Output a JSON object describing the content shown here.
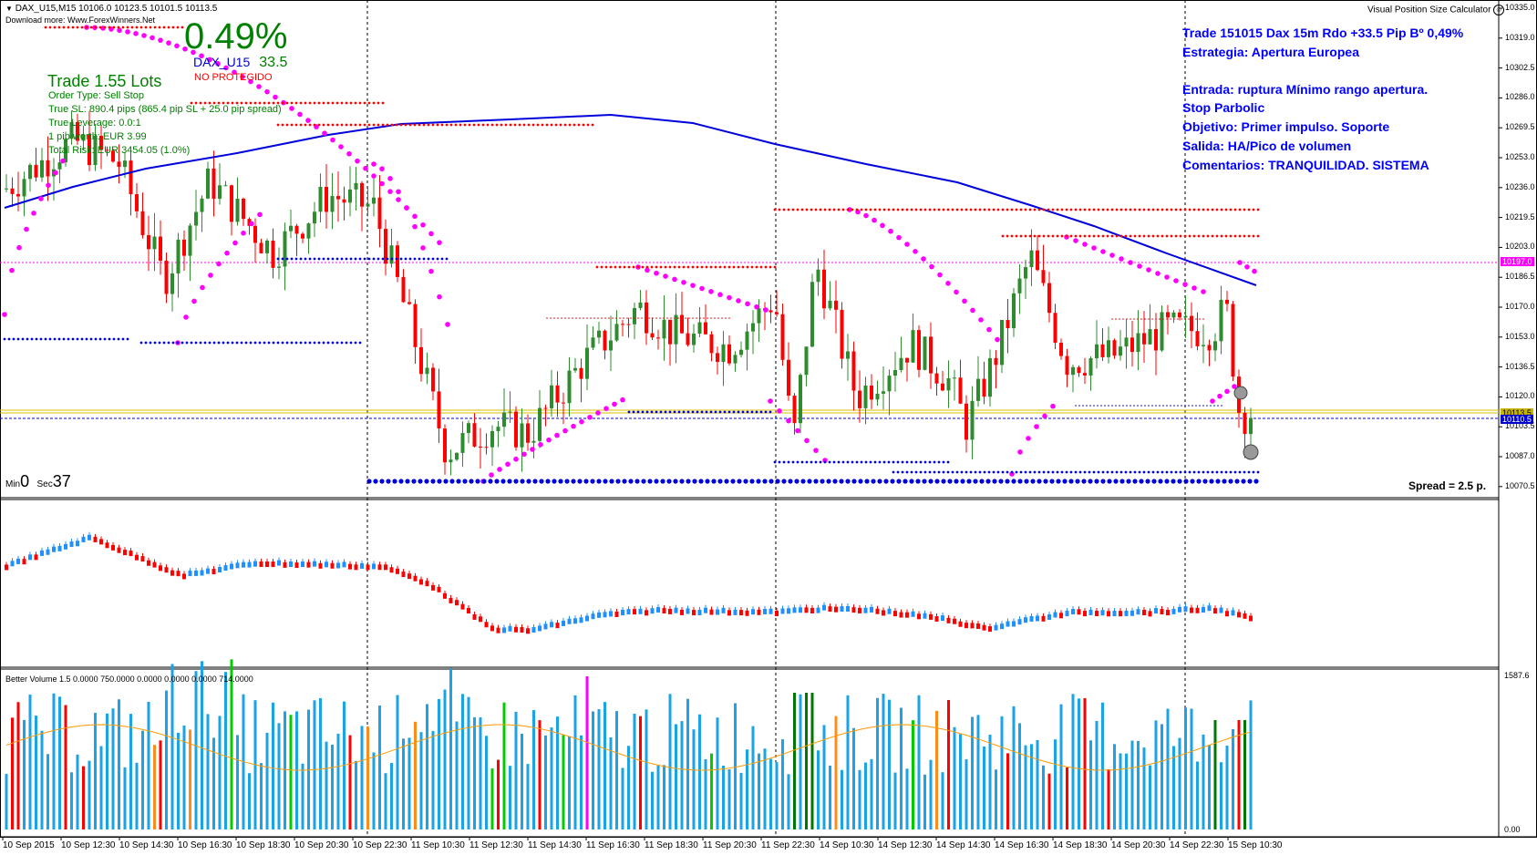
{
  "header": {
    "symbol_ohlc": "DAX_U15,M15  10106.0 10123.5 10101.5 10113.5",
    "download_note": "Download more: Www.ForexWinners.Net"
  },
  "position_panel": {
    "percent": "0.49%",
    "symbol": "DAX_U15",
    "pips": "33.5",
    "protection": "NO PROTEGIDO",
    "lots": "Trade 1.55 Lots",
    "order_type": "Order Type:  Sell Stop",
    "true_sl": "True SL:  890.4 pips (865.4 pip SL + 25.0 pip spread)",
    "true_leverage": "True Leverage:  0.0:1",
    "pip_worth": "1 pip worth:  EUR 3.99",
    "total_risk": "Total Risk:  EUR 3454.05 (1.0%)"
  },
  "calculator": {
    "label": "Visual Position Size Calculator",
    "icon": "smiley-icon"
  },
  "notes": {
    "line1": "Trade 151015 Dax 15m Rdo +33.5 Pip Bº 0,49%",
    "line2": "Estrategia: Apertura Europea",
    "line3": "Entrada: ruptura Mínimo rango apertura.",
    "line4": "Stop Parbolic",
    "line5": "Objetivo: Primer impulso. Soporte",
    "line6": "Salida: HA/Pico de volumen",
    "line7": "Comentarios: TRANQUILIDAD. SISTEMA"
  },
  "timer": {
    "min_label": "Min",
    "min_value": "0",
    "sec_label": "Sec",
    "sec_value": "37"
  },
  "spread": "Spread = 2.5 p.",
  "price_axis": [
    "10335.0",
    "10319.0",
    "10302.5",
    "10286.0",
    "10269.5",
    "10253.0",
    "10236.0",
    "10219.5",
    "10203.0",
    "10186.5",
    "10170.0",
    "10153.0",
    "10136.5",
    "10120.0",
    "10103.5",
    "10087.0",
    "10070.5"
  ],
  "price_tags": {
    "pink": "10197.0",
    "current": "10113.5",
    "blue": "10110.5"
  },
  "volume_indicator": {
    "label": "Better Volume 1.5 0.0000 750.0000 0.0000 0.0000 0.0000 714.0000",
    "axis_top": "1587.6",
    "axis_bottom": "0.00"
  },
  "time_axis": [
    "10 Sep 2015",
    "10 Sep 12:30",
    "10 Sep 14:30",
    "10 Sep 16:30",
    "10 Sep 18:30",
    "10 Sep 20:30",
    "10 Sep 22:30",
    "11 Sep 10:30",
    "11 Sep 12:30",
    "11 Sep 14:30",
    "11 Sep 16:30",
    "11 Sep 18:30",
    "11 Sep 20:30",
    "11 Sep 22:30",
    "14 Sep 10:30",
    "14 Sep 12:30",
    "14 Sep 14:30",
    "14 Sep 16:30",
    "14 Sep 18:30",
    "14 Sep 20:30",
    "14 Sep 22:30",
    "15 Sep 10:30"
  ],
  "colors": {
    "bull": "#2e8b2e",
    "bear": "#ff0000",
    "ma": "#0000dd",
    "sar": "#ff00ff",
    "vol_blue": "#1aa3e6",
    "vol_red": "#ff0000",
    "vol_green": "#00cc00",
    "vol_darkgreen": "#007700",
    "vol_orange": "#ff8c1a",
    "vol_magenta": "#ff00ff",
    "vol_ma": "#ff9900",
    "osc_up": "#1e90ff",
    "osc_down": "#ff0000"
  }
}
